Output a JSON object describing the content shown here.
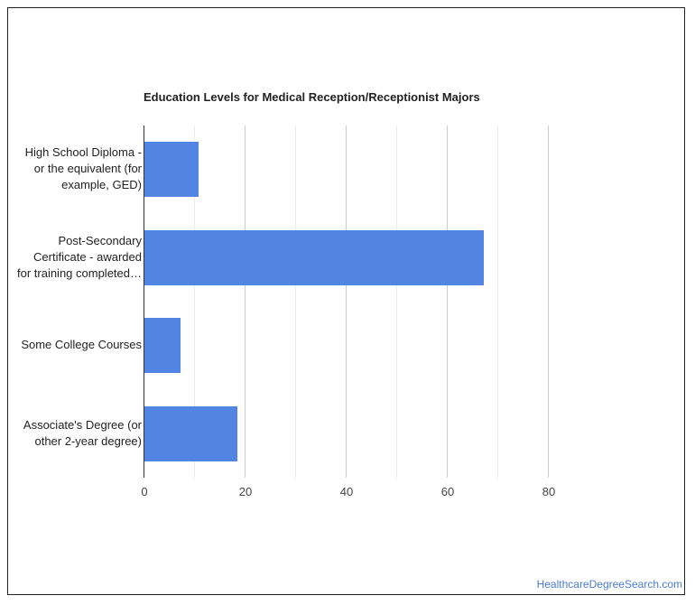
{
  "chart_data": {
    "type": "bar",
    "orientation": "horizontal",
    "title": "Education Levels for Medical Reception/Receptionist Majors",
    "categories": [
      "High School Diploma - or the equivalent (for example, GED)",
      "Post-Secondary Certificate - awarded for training completed…",
      "Some College Courses",
      "Associate's Degree (or other 2-year degree)"
    ],
    "category_lines": [
      [
        "High School Diploma -",
        "or the equivalent (for",
        "example, GED)"
      ],
      [
        "Post-Secondary",
        "Certificate - awarded",
        "for training completed…"
      ],
      [
        "Some College Courses"
      ],
      [
        "Associate's Degree (or",
        "other 2-year degree)"
      ]
    ],
    "values": [
      10.7,
      67.1,
      7.1,
      18.4
    ],
    "xlabel": "",
    "ylabel": "",
    "xlim": [
      0,
      80
    ],
    "xticks": [
      "0",
      "20",
      "40",
      "60",
      "80"
    ],
    "grid": true,
    "legend": null
  },
  "colors": {
    "bar": "#5284e3",
    "grid_major": "#cccccc",
    "grid_minor": "#ececec",
    "credit": "#4a7ccf"
  },
  "credit": "HealthcareDegreeSearch.com"
}
